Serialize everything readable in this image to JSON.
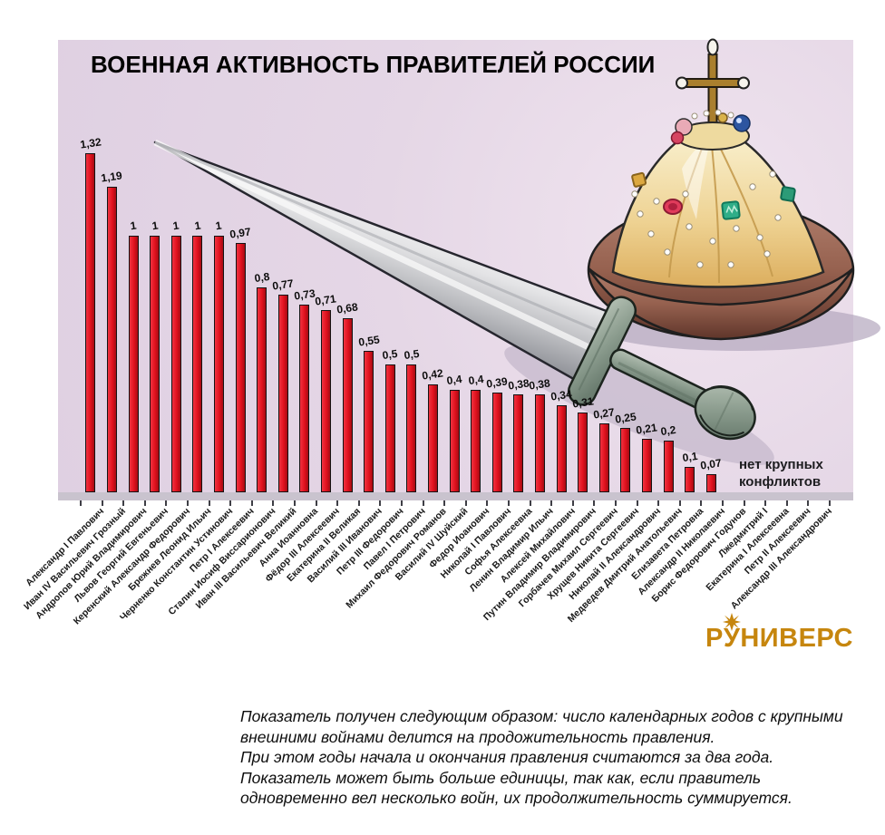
{
  "chart_data": {
    "type": "bar",
    "title": "ВОЕННАЯ АКТИВНОСТЬ ПРАВИТЕЛЕЙ РОССИИ",
    "xlabel": "",
    "ylabel": "",
    "ylim": [
      0,
      1.4
    ],
    "grid": false,
    "legend": null,
    "bar_color": "#e0111d",
    "panel_background": "#e4d6e5",
    "categories": [
      "Александр I Павлович",
      "Иван IV Васильевич Грозный",
      "Андропов Юрий Владимирович",
      "Львов Георгий Евгеньевич",
      "Керенский Александр Федорович",
      "Брежнев Леонид Ильич",
      "Черненко Константин Устинович",
      "Петр I Алексеевич",
      "Сталин Иосиф Виссарионович",
      "Иван III Васильевич Великий",
      "Анна Иоанновна",
      "Фёдор III Алексеевич",
      "Екатерина II Великая",
      "Василий III Иванович",
      "Петр III Федорович",
      "Павел I Петрович",
      "Михаил Федорович Романов",
      "Василий IV Шуйский",
      "Федор Иоанович",
      "Николай I Павлович",
      "Софья Алексеевна",
      "Ленин Владимир Ильич",
      "Алексей Михайлович",
      "Путин Владимир Владимирович",
      "Горбачев Михаил Сергеевич",
      "Хрущев Никита Сергеевич",
      "Николай II Александрович",
      "Медведев Дмитрий Анатольевич",
      "Елизавета Петровна",
      "Александр II Николаевич",
      "Борис Федорович Годунов",
      "Лжедмитрий I",
      "Екатерина I Алексеевна",
      "Петр II Алексеевич",
      "Александр III Александрович"
    ],
    "values": [
      1.32,
      1.19,
      1,
      1,
      1,
      1,
      1,
      0.97,
      0.8,
      0.77,
      0.73,
      0.71,
      0.68,
      0.55,
      0.5,
      0.5,
      0.42,
      0.4,
      0.4,
      0.39,
      0.38,
      0.38,
      0.34,
      0.31,
      0.27,
      0.25,
      0.21,
      0.2,
      0.1,
      0.07,
      null,
      null,
      null,
      null,
      null
    ],
    "value_labels": [
      "1,32",
      "1,19",
      "1",
      "1",
      "1",
      "1",
      "1",
      "0,97",
      "0,8",
      "0,77",
      "0,73",
      "0,71",
      "0,68",
      "0,55",
      "0,5",
      "0,5",
      "0,42",
      "0,4",
      "0,4",
      "0,39",
      "0,38",
      "0,38",
      "0,34",
      "0,31",
      "0,27",
      "0,25",
      "0,21",
      "0,2",
      "0,1",
      "0,07",
      null,
      null,
      null,
      null,
      null
    ],
    "no_data_note": {
      "line1": "нет крупных",
      "line2": "конфликтов"
    }
  },
  "decor": {
    "crown_icon": "monomakh-cap",
    "sword_icon": "sword"
  },
  "logo": {
    "pre": "Р",
    "star_letter": "У",
    "post": "НИВЕРС",
    "color": "#c6860e",
    "star_icon": "eight-ray-star"
  },
  "footnote": {
    "lines": [
      "Показатель получен следующим образом: число календарных годов с крупными",
      "внешними войнами делится на продожительность правления.",
      "При этом годы начала и окончания правления считаются за два года.",
      "Показатель может быть больше единицы, так как, если правитель",
      "одновременно вел несколько войн, их продолжительность суммируется."
    ]
  }
}
